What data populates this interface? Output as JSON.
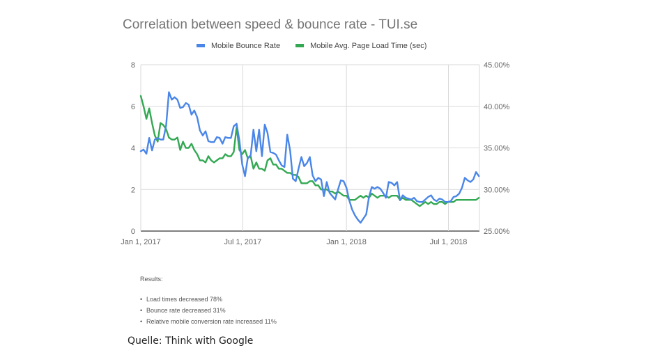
{
  "chart_data": {
    "type": "line",
    "title": "Correlation between speed & bounce rate - TUI.se",
    "legend_position": "top",
    "grid": true,
    "x_range": [
      "2017-01-01",
      "2018-08-25"
    ],
    "x_ticks": [
      {
        "date": "2017-01-01",
        "label": "Jan 1, 2017"
      },
      {
        "date": "2017-07-01",
        "label": "Jul 1, 2017"
      },
      {
        "date": "2018-01-01",
        "label": "Jan 1, 2018"
      },
      {
        "date": "2018-07-01",
        "label": "Jul 1, 2018"
      }
    ],
    "y_left": {
      "ylim": [
        0,
        8
      ],
      "ticks": [
        "0",
        "2",
        "4",
        "6",
        "8"
      ]
    },
    "y_right": {
      "ylim": [
        25,
        45
      ],
      "ticks": [
        "25.00%",
        "30.00%",
        "35.00%",
        "40.00%",
        "45.00%"
      ]
    },
    "series": [
      {
        "name": "Mobile Bounce Rate",
        "color": "#4a86e8",
        "axis": "right",
        "points": [
          [
            "2017-01-01",
            34.6
          ],
          [
            "2017-01-06",
            34.8
          ],
          [
            "2017-01-11",
            34.3
          ],
          [
            "2017-01-16",
            36.2
          ],
          [
            "2017-01-21",
            34.7
          ],
          [
            "2017-01-26",
            36.0
          ],
          [
            "2017-01-31",
            36.2
          ],
          [
            "2017-02-05",
            36.0
          ],
          [
            "2017-02-10",
            36.0
          ],
          [
            "2017-02-15",
            37.7
          ],
          [
            "2017-02-20",
            41.7
          ],
          [
            "2017-02-25",
            40.8
          ],
          [
            "2017-03-02",
            41.1
          ],
          [
            "2017-03-07",
            40.8
          ],
          [
            "2017-03-12",
            39.8
          ],
          [
            "2017-03-17",
            39.9
          ],
          [
            "2017-03-22",
            40.4
          ],
          [
            "2017-03-27",
            40.2
          ],
          [
            "2017-04-01",
            39.0
          ],
          [
            "2017-04-06",
            39.5
          ],
          [
            "2017-04-11",
            38.7
          ],
          [
            "2017-04-16",
            37.1
          ],
          [
            "2017-04-21",
            36.5
          ],
          [
            "2017-04-26",
            37.0
          ],
          [
            "2017-05-01",
            35.8
          ],
          [
            "2017-05-06",
            35.7
          ],
          [
            "2017-05-11",
            35.7
          ],
          [
            "2017-05-16",
            36.3
          ],
          [
            "2017-05-21",
            36.2
          ],
          [
            "2017-05-26",
            35.5
          ],
          [
            "2017-05-31",
            36.3
          ],
          [
            "2017-06-05",
            36.2
          ],
          [
            "2017-06-10",
            36.2
          ],
          [
            "2017-06-15",
            37.6
          ],
          [
            "2017-06-20",
            37.9
          ],
          [
            "2017-06-25",
            35.9
          ],
          [
            "2017-06-30",
            33.0
          ],
          [
            "2017-07-05",
            31.6
          ],
          [
            "2017-07-10",
            33.8
          ],
          [
            "2017-07-15",
            34.1
          ],
          [
            "2017-07-20",
            37.2
          ],
          [
            "2017-07-25",
            34.6
          ],
          [
            "2017-07-30",
            37.2
          ],
          [
            "2017-08-04",
            34.0
          ],
          [
            "2017-08-09",
            37.8
          ],
          [
            "2017-08-14",
            36.8
          ],
          [
            "2017-08-19",
            34.5
          ],
          [
            "2017-08-24",
            34.4
          ],
          [
            "2017-08-29",
            34.2
          ],
          [
            "2017-09-03",
            33.5
          ],
          [
            "2017-09-08",
            32.9
          ],
          [
            "2017-09-13",
            32.7
          ],
          [
            "2017-09-18",
            36.6
          ],
          [
            "2017-09-23",
            34.7
          ],
          [
            "2017-09-28",
            31.3
          ],
          [
            "2017-10-03",
            31.0
          ],
          [
            "2017-10-08",
            32.5
          ],
          [
            "2017-10-13",
            33.9
          ],
          [
            "2017-10-18",
            32.8
          ],
          [
            "2017-10-23",
            33.2
          ],
          [
            "2017-10-28",
            33.9
          ],
          [
            "2017-11-02",
            31.7
          ],
          [
            "2017-11-07",
            31.0
          ],
          [
            "2017-11-12",
            31.4
          ],
          [
            "2017-11-17",
            31.2
          ],
          [
            "2017-11-22",
            29.2
          ],
          [
            "2017-11-27",
            30.9
          ],
          [
            "2017-12-02",
            29.6
          ],
          [
            "2017-12-07",
            29.2
          ],
          [
            "2017-12-12",
            28.8
          ],
          [
            "2017-12-17",
            30.0
          ],
          [
            "2017-12-22",
            31.1
          ],
          [
            "2017-12-27",
            31.0
          ],
          [
            "2018-01-01",
            30.2
          ],
          [
            "2018-01-06",
            28.7
          ],
          [
            "2018-01-11",
            27.6
          ],
          [
            "2018-01-16",
            26.9
          ],
          [
            "2018-01-21",
            26.4
          ],
          [
            "2018-01-26",
            26.0
          ],
          [
            "2018-01-31",
            26.5
          ],
          [
            "2018-02-05",
            27.0
          ],
          [
            "2018-02-10",
            29.1
          ],
          [
            "2018-02-15",
            30.3
          ],
          [
            "2018-02-20",
            30.1
          ],
          [
            "2018-02-25",
            30.3
          ],
          [
            "2018-03-02",
            30.1
          ],
          [
            "2018-03-07",
            29.6
          ],
          [
            "2018-03-12",
            29.0
          ],
          [
            "2018-03-17",
            30.9
          ],
          [
            "2018-03-22",
            30.8
          ],
          [
            "2018-03-27",
            30.5
          ],
          [
            "2018-04-01",
            30.9
          ],
          [
            "2018-04-06",
            28.7
          ],
          [
            "2018-04-11",
            29.3
          ],
          [
            "2018-04-16",
            29.0
          ],
          [
            "2018-04-21",
            28.9
          ],
          [
            "2018-04-26",
            28.8
          ],
          [
            "2018-05-01",
            29.0
          ],
          [
            "2018-05-06",
            28.6
          ],
          [
            "2018-05-11",
            28.5
          ],
          [
            "2018-05-16",
            28.5
          ],
          [
            "2018-05-21",
            28.8
          ],
          [
            "2018-05-26",
            29.1
          ],
          [
            "2018-05-31",
            29.3
          ],
          [
            "2018-06-05",
            28.8
          ],
          [
            "2018-06-10",
            28.6
          ],
          [
            "2018-06-15",
            28.9
          ],
          [
            "2018-06-20",
            28.8
          ],
          [
            "2018-06-25",
            28.5
          ],
          [
            "2018-06-30",
            28.5
          ],
          [
            "2018-07-05",
            28.6
          ],
          [
            "2018-07-10",
            29.1
          ],
          [
            "2018-07-15",
            29.2
          ],
          [
            "2018-07-20",
            29.5
          ],
          [
            "2018-07-25",
            30.2
          ],
          [
            "2018-07-30",
            31.4
          ],
          [
            "2018-08-04",
            31.1
          ],
          [
            "2018-08-09",
            30.9
          ],
          [
            "2018-08-14",
            31.2
          ],
          [
            "2018-08-19",
            32.1
          ],
          [
            "2018-08-24",
            31.6
          ]
        ]
      },
      {
        "name": "Mobile Avg. Page Load Time (sec)",
        "color": "#33a853",
        "axis": "left",
        "points": [
          [
            "2017-01-01",
            6.5
          ],
          [
            "2017-01-06",
            6.0
          ],
          [
            "2017-01-11",
            5.4
          ],
          [
            "2017-01-16",
            5.9
          ],
          [
            "2017-01-21",
            5.2
          ],
          [
            "2017-01-26",
            4.6
          ],
          [
            "2017-01-31",
            4.3
          ],
          [
            "2017-02-05",
            5.2
          ],
          [
            "2017-02-10",
            5.1
          ],
          [
            "2017-02-15",
            4.9
          ],
          [
            "2017-02-20",
            4.5
          ],
          [
            "2017-02-25",
            4.4
          ],
          [
            "2017-03-02",
            4.4
          ],
          [
            "2017-03-07",
            4.5
          ],
          [
            "2017-03-12",
            3.9
          ],
          [
            "2017-03-17",
            4.3
          ],
          [
            "2017-03-22",
            4.0
          ],
          [
            "2017-03-27",
            4.0
          ],
          [
            "2017-04-01",
            4.2
          ],
          [
            "2017-04-06",
            3.9
          ],
          [
            "2017-04-11",
            3.7
          ],
          [
            "2017-04-16",
            3.4
          ],
          [
            "2017-04-21",
            3.4
          ],
          [
            "2017-04-26",
            3.3
          ],
          [
            "2017-05-01",
            3.6
          ],
          [
            "2017-05-06",
            3.4
          ],
          [
            "2017-05-11",
            3.3
          ],
          [
            "2017-05-16",
            3.4
          ],
          [
            "2017-05-21",
            3.5
          ],
          [
            "2017-05-26",
            3.5
          ],
          [
            "2017-05-31",
            3.7
          ],
          [
            "2017-06-05",
            3.6
          ],
          [
            "2017-06-10",
            3.6
          ],
          [
            "2017-06-15",
            3.8
          ],
          [
            "2017-06-20",
            5.0
          ],
          [
            "2017-06-25",
            3.9
          ],
          [
            "2017-06-30",
            3.7
          ],
          [
            "2017-07-05",
            3.9
          ],
          [
            "2017-07-10",
            3.5
          ],
          [
            "2017-07-15",
            3.6
          ],
          [
            "2017-07-20",
            3.0
          ],
          [
            "2017-07-25",
            3.3
          ],
          [
            "2017-07-30",
            3.0
          ],
          [
            "2017-08-04",
            3.0
          ],
          [
            "2017-08-09",
            2.9
          ],
          [
            "2017-08-14",
            3.4
          ],
          [
            "2017-08-19",
            3.5
          ],
          [
            "2017-08-24",
            3.2
          ],
          [
            "2017-08-29",
            3.2
          ],
          [
            "2017-09-03",
            3.0
          ],
          [
            "2017-09-08",
            3.0
          ],
          [
            "2017-09-13",
            2.9
          ],
          [
            "2017-09-18",
            2.8
          ],
          [
            "2017-09-23",
            2.8
          ],
          [
            "2017-09-28",
            2.7
          ],
          [
            "2017-10-03",
            2.7
          ],
          [
            "2017-10-08",
            2.6
          ],
          [
            "2017-10-13",
            2.3
          ],
          [
            "2017-10-18",
            2.3
          ],
          [
            "2017-10-23",
            2.3
          ],
          [
            "2017-10-28",
            2.4
          ],
          [
            "2017-11-02",
            2.4
          ],
          [
            "2017-11-07",
            2.2
          ],
          [
            "2017-11-12",
            2.2
          ],
          [
            "2017-11-17",
            2.0
          ],
          [
            "2017-11-22",
            2.0
          ],
          [
            "2017-11-27",
            2.0
          ],
          [
            "2017-12-02",
            1.9
          ],
          [
            "2017-12-07",
            1.9
          ],
          [
            "2017-12-12",
            1.8
          ],
          [
            "2017-12-17",
            1.9
          ],
          [
            "2017-12-22",
            1.8
          ],
          [
            "2017-12-27",
            1.7
          ],
          [
            "2018-01-01",
            1.7
          ],
          [
            "2018-01-06",
            1.5
          ],
          [
            "2018-01-11",
            1.5
          ],
          [
            "2018-01-16",
            1.5
          ],
          [
            "2018-01-21",
            1.6
          ],
          [
            "2018-01-26",
            1.7
          ],
          [
            "2018-01-31",
            1.6
          ],
          [
            "2018-02-05",
            1.7
          ],
          [
            "2018-02-10",
            1.6
          ],
          [
            "2018-02-15",
            1.8
          ],
          [
            "2018-02-20",
            1.7
          ],
          [
            "2018-02-25",
            1.6
          ],
          [
            "2018-03-02",
            1.7
          ],
          [
            "2018-03-07",
            1.7
          ],
          [
            "2018-03-12",
            1.7
          ],
          [
            "2018-03-17",
            1.6
          ],
          [
            "2018-03-22",
            1.7
          ],
          [
            "2018-03-27",
            1.7
          ],
          [
            "2018-04-01",
            1.7
          ],
          [
            "2018-04-06",
            1.5
          ],
          [
            "2018-04-11",
            1.6
          ],
          [
            "2018-04-16",
            1.5
          ],
          [
            "2018-04-21",
            1.5
          ],
          [
            "2018-04-26",
            1.5
          ],
          [
            "2018-05-01",
            1.4
          ],
          [
            "2018-05-06",
            1.3
          ],
          [
            "2018-05-11",
            1.2
          ],
          [
            "2018-05-16",
            1.3
          ],
          [
            "2018-05-21",
            1.4
          ],
          [
            "2018-05-26",
            1.3
          ],
          [
            "2018-05-31",
            1.4
          ],
          [
            "2018-06-05",
            1.3
          ],
          [
            "2018-06-10",
            1.3
          ],
          [
            "2018-06-15",
            1.4
          ],
          [
            "2018-06-20",
            1.4
          ],
          [
            "2018-06-25",
            1.3
          ],
          [
            "2018-06-30",
            1.4
          ],
          [
            "2018-07-05",
            1.4
          ],
          [
            "2018-07-10",
            1.4
          ],
          [
            "2018-07-15",
            1.5
          ],
          [
            "2018-07-20",
            1.5
          ],
          [
            "2018-07-25",
            1.5
          ],
          [
            "2018-07-30",
            1.5
          ],
          [
            "2018-08-04",
            1.5
          ],
          [
            "2018-08-09",
            1.5
          ],
          [
            "2018-08-14",
            1.5
          ],
          [
            "2018-08-19",
            1.5
          ],
          [
            "2018-08-24",
            1.6
          ]
        ]
      }
    ]
  },
  "results": {
    "heading": "Results:",
    "items": [
      "Load times decreased 78%",
      "Bounce rate decreased 31%",
      "Relative mobile conversion rate increased 11%"
    ]
  },
  "source": "Quelle: Think with Google"
}
